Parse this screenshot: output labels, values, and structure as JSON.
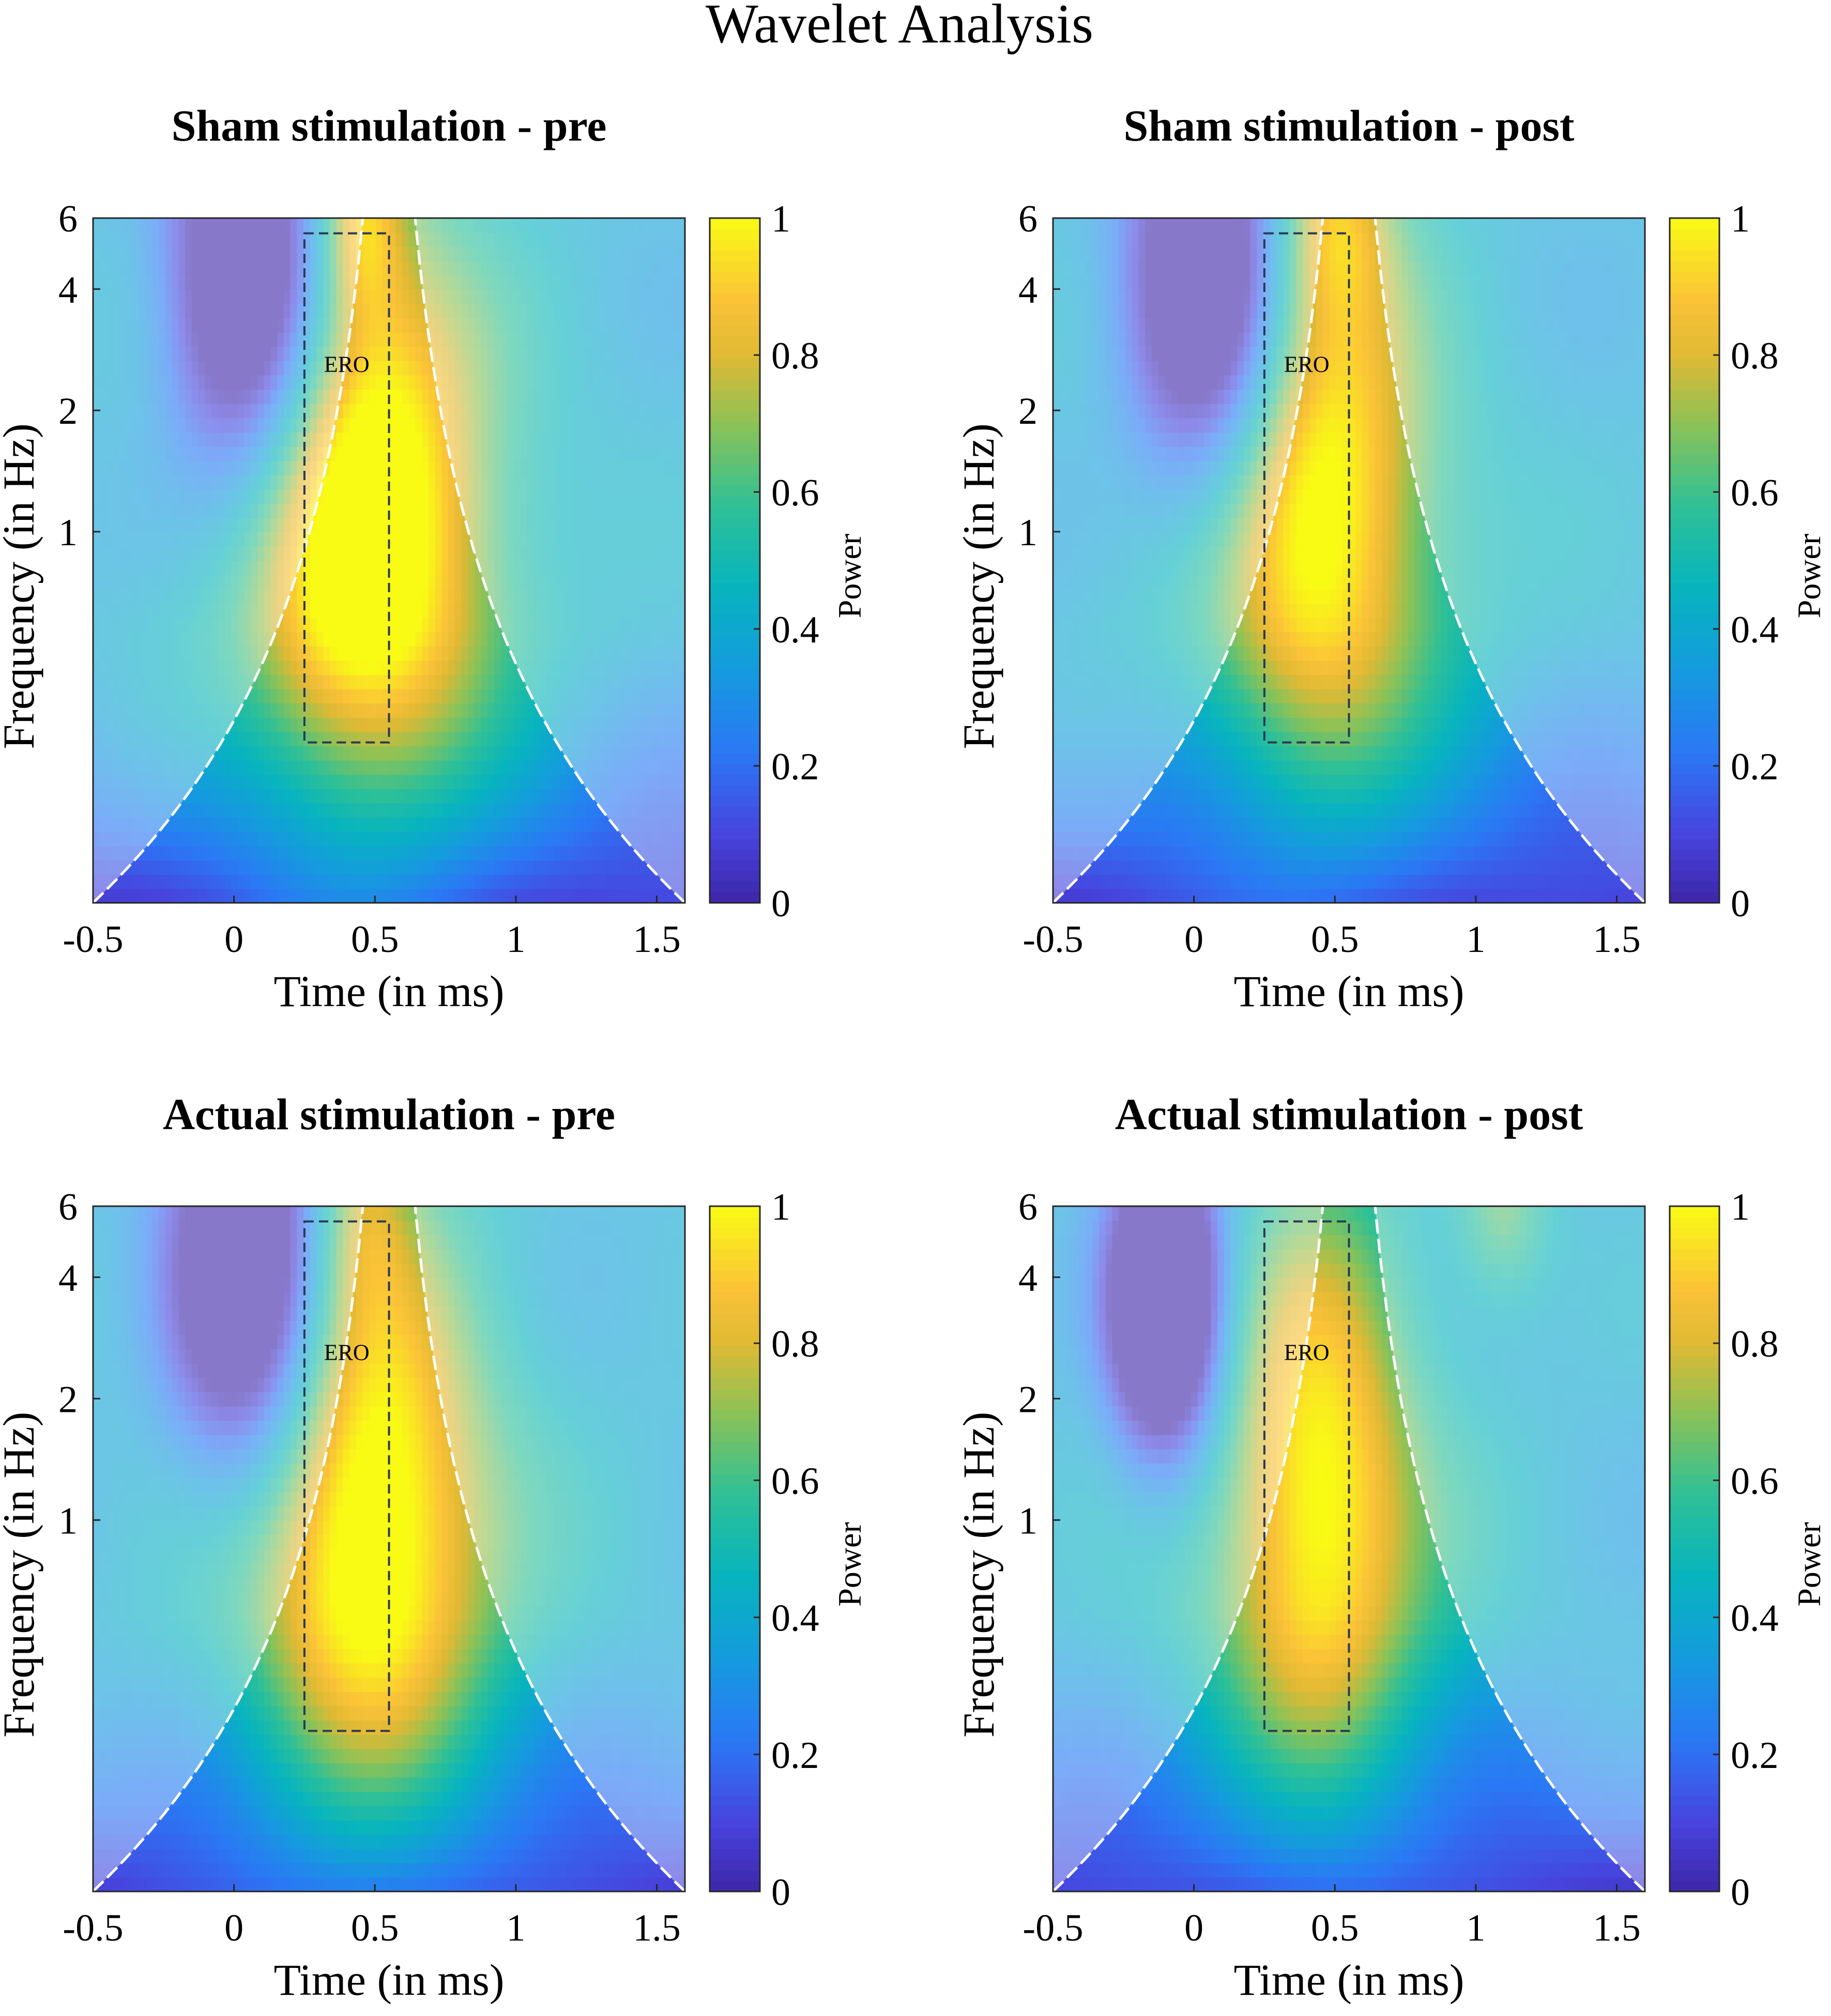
{
  "chart_data": {
    "type": "heatmap",
    "title": "Wavelet Analysis",
    "colormap": "parula",
    "colors": {
      "cone_boundary": "#ffffff",
      "ero_box": "#2b3a55",
      "axis": "#262626"
    },
    "colorbar": {
      "label": "Power",
      "range": [
        0,
        1
      ],
      "ticks": [
        "0",
        "0.2",
        "0.4",
        "0.6",
        "0.8",
        "1"
      ]
    },
    "panels": [
      {
        "title": "Sham stimulation - pre",
        "xlabel": "Time (in ms)",
        "ylabel": "Frequency (in Hz)",
        "xlim": [
          -0.5,
          1.6
        ],
        "ylim_hz": [
          0.12,
          6
        ],
        "xticks": [
          "-0.5",
          "0",
          "0.5",
          "1",
          "1.5"
        ],
        "yticks": [
          "1",
          "2",
          "4",
          "6"
        ],
        "ero_box": {
          "label": "ERO",
          "time": [
            0.25,
            0.55
          ],
          "freq_hz": [
            0.3,
            5.5
          ]
        },
        "blobs": [
          {
            "t": 0.47,
            "f": 1.25,
            "amp": 0.91,
            "st": 0.28,
            "sf": 0.32
          },
          {
            "t": 0.46,
            "f": 0.75,
            "amp": 0.68,
            "st": 0.44,
            "sf": 0.3
          },
          {
            "t": 0.45,
            "f": 6.0,
            "amp": 0.72,
            "st": 0.1,
            "sf": 0.1
          },
          {
            "t": 0.05,
            "f": 4.0,
            "amp": -0.12,
            "st": 0.2,
            "sf": 0.22
          }
        ]
      },
      {
        "title": "Sham stimulation - post",
        "xlabel": "Time (in ms)",
        "ylabel": "Frequency (in Hz)",
        "xlim": [
          -0.5,
          1.6
        ],
        "ylim_hz": [
          0.12,
          6
        ],
        "xticks": [
          "-0.5",
          "0",
          "0.5",
          "1",
          "1.5"
        ],
        "yticks": [
          "1",
          "2",
          "4",
          "6"
        ],
        "ero_box": {
          "label": "ERO",
          "time": [
            0.25,
            0.55
          ],
          "freq_hz": [
            0.3,
            5.5
          ]
        },
        "blobs": [
          {
            "t": 0.45,
            "f": 1.45,
            "amp": 0.83,
            "st": 0.25,
            "sf": 0.3
          },
          {
            "t": 0.42,
            "f": 0.8,
            "amp": 0.64,
            "st": 0.42,
            "sf": 0.3
          },
          {
            "t": 0.5,
            "f": 6.0,
            "amp": 0.68,
            "st": 0.14,
            "sf": 0.1
          },
          {
            "t": 0.05,
            "f": 4.0,
            "amp": -0.1,
            "st": 0.2,
            "sf": 0.22
          }
        ]
      },
      {
        "title": "Actual stimulation - pre",
        "xlabel": "Time (in ms)",
        "ylabel": "Frequency (in Hz)",
        "xlim": [
          -0.5,
          1.6
        ],
        "ylim_hz": [
          0.12,
          6
        ],
        "xticks": [
          "-0.5",
          "0",
          "0.5",
          "1",
          "1.5"
        ],
        "yticks": [
          "1",
          "2",
          "4",
          "6"
        ],
        "ero_box": {
          "label": "ERO",
          "time": [
            0.25,
            0.55
          ],
          "freq_hz": [
            0.3,
            5.5
          ]
        },
        "blobs": [
          {
            "t": 0.48,
            "f": 1.2,
            "amp": 0.87,
            "st": 0.27,
            "sf": 0.32
          },
          {
            "t": 0.47,
            "f": 0.7,
            "amp": 0.66,
            "st": 0.44,
            "sf": 0.3
          },
          {
            "t": 0.45,
            "f": 6.0,
            "amp": 0.6,
            "st": 0.12,
            "sf": 0.1
          },
          {
            "t": 0.05,
            "f": 4.0,
            "amp": -0.12,
            "st": 0.2,
            "sf": 0.22
          }
        ]
      },
      {
        "title": "Actual stimulation - post",
        "xlabel": "Time (in ms)",
        "ylabel": "Frequency (in Hz)",
        "xlim": [
          -0.5,
          1.6
        ],
        "ylim_hz": [
          0.12,
          6
        ],
        "xticks": [
          "-0.5",
          "0",
          "0.5",
          "1",
          "1.5"
        ],
        "yticks": [
          "1",
          "2",
          "4",
          "6"
        ],
        "ero_box": {
          "label": "ERO",
          "time": [
            0.25,
            0.55
          ],
          "freq_hz": [
            0.3,
            5.5
          ]
        },
        "blobs": [
          {
            "t": 0.45,
            "f": 1.3,
            "amp": 0.82,
            "st": 0.22,
            "sf": 0.3
          },
          {
            "t": 0.42,
            "f": 0.75,
            "amp": 0.62,
            "st": 0.4,
            "sf": 0.3
          },
          {
            "t": 1.1,
            "f": 6.0,
            "amp": 0.64,
            "st": 0.12,
            "sf": 0.1
          },
          {
            "t": -0.1,
            "f": 3.5,
            "amp": -0.22,
            "st": 0.14,
            "sf": 0.16
          }
        ]
      }
    ]
  }
}
